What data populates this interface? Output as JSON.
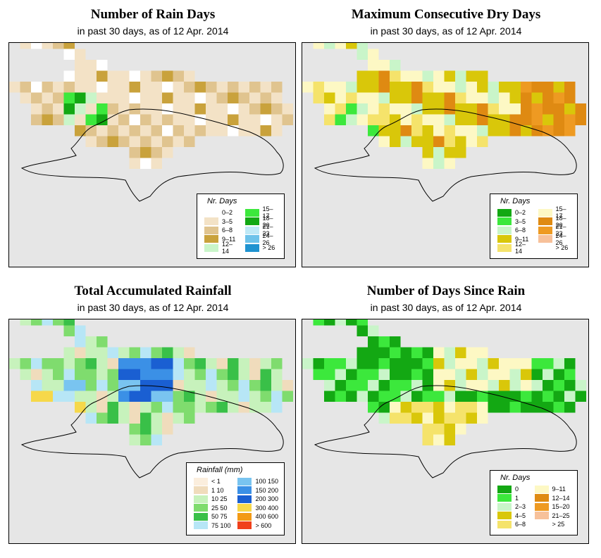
{
  "panels": [
    {
      "title": "Number of Rain Days",
      "subtitle": "in past 30 days, as of  12 Apr. 2014",
      "legend_title": "Nr. Days",
      "legend": [
        {
          "label": "0–2",
          "color": "#ffffff"
        },
        {
          "label": "3–5",
          "color": "#f3e2c6"
        },
        {
          "label": "6–8",
          "color": "#e0c48f"
        },
        {
          "label": "9–11",
          "color": "#c9a23c"
        },
        {
          "label": "12–14",
          "color": "#c9f5c9"
        },
        {
          "label": "15–17",
          "color": "#3ce83c"
        },
        {
          "label": "18–20",
          "color": "#13a813"
        },
        {
          "label": "21–23",
          "color": "#bfe9f6"
        },
        {
          "label": "24–26",
          "color": "#6ec3ea"
        },
        {
          "label": "> 26",
          "color": "#1f93d0"
        }
      ]
    },
    {
      "title": "Maximum Consecutive Dry Days",
      "subtitle": "in past 30 days, as of  12 Apr. 2014",
      "legend_title": "Nr. Days",
      "legend": [
        {
          "label": "0–2",
          "color": "#13a813"
        },
        {
          "label": "3–5",
          "color": "#3ce83c"
        },
        {
          "label": "6–8",
          "color": "#c9f5c9"
        },
        {
          "label": "9–11",
          "color": "#d9c70a"
        },
        {
          "label": "12–14",
          "color": "#f5e36b"
        },
        {
          "label": "15–17",
          "color": "#fdf8c4"
        },
        {
          "label": "18–20",
          "color": "#df8a12"
        },
        {
          "label": "21–23",
          "color": "#ee9a22"
        },
        {
          "label": "24–26",
          "color": "#f7c19a"
        },
        {
          "label": "> 26",
          "color": "#ffffff"
        }
      ]
    },
    {
      "title": "Total Accumulated Rainfall",
      "subtitle": "in past 30 days, as of  12 Apr. 2014",
      "legend_title": "Rainfall (mm)",
      "legend": [
        {
          "label": "< 1",
          "color": "#fbeedd"
        },
        {
          "label": "1   10",
          "color": "#f0dcbc"
        },
        {
          "label": "10   25",
          "color": "#c7f2bc"
        },
        {
          "label": "25   50",
          "color": "#7fdc6e"
        },
        {
          "label": "50   75",
          "color": "#39c048"
        },
        {
          "label": "75  100",
          "color": "#b7e6f6"
        },
        {
          "label": "100  150",
          "color": "#79c4f0"
        },
        {
          "label": "150  200",
          "color": "#3b90e6"
        },
        {
          "label": "200  300",
          "color": "#1a5fd2"
        },
        {
          "label": "300  400",
          "color": "#f6d84a"
        },
        {
          "label": "400  600",
          "color": "#f39a15"
        },
        {
          "label": "> 600",
          "color": "#f0401b"
        }
      ]
    },
    {
      "title": "Number of Days Since Rain",
      "subtitle": "in past 30 days, as of  12 Apr. 2014",
      "legend_title": "Nr. Days",
      "legend": [
        {
          "label": "0",
          "color": "#13a813"
        },
        {
          "label": "1",
          "color": "#3ce83c"
        },
        {
          "label": "2–3",
          "color": "#c9f5c9"
        },
        {
          "label": "4–5",
          "color": "#d9c70a"
        },
        {
          "label": "6–8",
          "color": "#f5e36b"
        },
        {
          "label": "9–11",
          "color": "#fdf8c4"
        },
        {
          "label": "12–14",
          "color": "#df8a12"
        },
        {
          "label": "15–20",
          "color": "#ee9a22"
        },
        {
          "label": "21–25",
          "color": "#f7c19a"
        },
        {
          "label": "> 25",
          "color": "#ffffff"
        }
      ]
    }
  ]
}
